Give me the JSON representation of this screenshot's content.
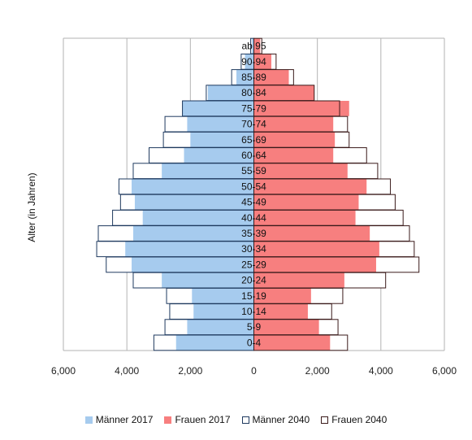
{
  "chart_data": {
    "type": "bar",
    "orientation": "horizontal",
    "subtype": "population-pyramid",
    "ylabel": "Alter (in Jahren)",
    "categories": [
      "0-4",
      "5-9",
      "10-14",
      "15-19",
      "20-24",
      "25-29",
      "30-34",
      "35-39",
      "40-44",
      "45-49",
      "50-54",
      "55-59",
      "60-64",
      "65-69",
      "70-74",
      "75-79",
      "80-84",
      "85-89",
      "90-94",
      "ab 95"
    ],
    "x_ticks": [
      "6,000",
      "4,000",
      "2,000",
      "0",
      "2,000",
      "4,000",
      "6,000"
    ],
    "xlim": [
      -6000,
      6000
    ],
    "grid": true,
    "legend_position": "bottom",
    "series": [
      {
        "name": "Männer 2017",
        "side": "left",
        "style": "filled",
        "color": "#a6cbee",
        "values": [
          2450,
          2100,
          1900,
          1950,
          2900,
          3850,
          4050,
          3800,
          3500,
          3750,
          3850,
          2900,
          2200,
          2000,
          2100,
          2250,
          1450,
          550,
          280,
          60
        ]
      },
      {
        "name": "Frauen 2017",
        "side": "right",
        "style": "filled",
        "color": "#f77f7f",
        "values": [
          2400,
          2050,
          1700,
          1800,
          2850,
          3850,
          3950,
          3650,
          3200,
          3300,
          3550,
          2950,
          2500,
          2550,
          2500,
          3000,
          1900,
          1100,
          550,
          200
        ]
      },
      {
        "name": "Männer 2040",
        "side": "left",
        "style": "outline",
        "color": "#1f3a5f",
        "values": [
          3150,
          2800,
          2650,
          2750,
          3800,
          4650,
          4950,
          4900,
          4450,
          4200,
          4250,
          3800,
          3300,
          2850,
          2800,
          2250,
          1500,
          700,
          400,
          100
        ]
      },
      {
        "name": "Frauen 2040",
        "side": "right",
        "style": "outline",
        "color": "#3a1a1a",
        "values": [
          2950,
          2650,
          2450,
          2800,
          4150,
          5200,
          5050,
          4900,
          4700,
          4450,
          4300,
          3900,
          3550,
          3000,
          2950,
          2700,
          1900,
          1250,
          700,
          250
        ]
      }
    ]
  },
  "colors": {
    "grid": "#b3b3b3",
    "frame": "#b3b3b3",
    "text": "#111111"
  }
}
